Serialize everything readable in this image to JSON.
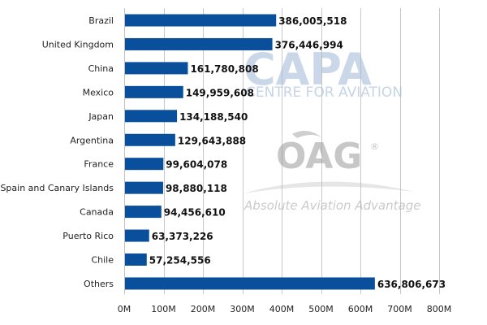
{
  "chart_data": {
    "type": "bar",
    "orientation": "horizontal",
    "categories": [
      "Brazil",
      "United Kingdom",
      "China",
      "Mexico",
      "Japan",
      "Argentina",
      "France",
      "Spain and Canary Islands",
      "Canada",
      "Puerto Rico",
      "Chile",
      "Others"
    ],
    "values": [
      386005518,
      376446994,
      161780808,
      149959608,
      134188540,
      129643888,
      99604078,
      98880118,
      94456610,
      63373226,
      57254556,
      636806673
    ],
    "value_labels": [
      "386,005,518",
      "376,446,994",
      "161,780,808",
      "149,959,608",
      "134,188,540",
      "129,643,888",
      "99,604,078",
      "98,880,118",
      "94,456,610",
      "63,373,226",
      "57,254,556",
      "636,806,673"
    ],
    "xlim": [
      0,
      800000000
    ],
    "x_ticks": [
      0,
      100000000,
      200000000,
      300000000,
      400000000,
      500000000,
      600000000,
      700000000,
      800000000
    ],
    "x_tick_labels": [
      "0M",
      "100M",
      "200M",
      "300M",
      "400M",
      "500M",
      "600M",
      "700M",
      "800M"
    ],
    "grid": true,
    "bar_color": "#0a4f9c",
    "title": "",
    "xlabel": "",
    "ylabel": ""
  },
  "watermarks": {
    "capa_logo_text": "CAPA",
    "capa_subtitle": "CENTRE FOR AVIATION",
    "oag_logo_text": "OAG",
    "oag_registered": "®",
    "oag_tagline": "Absolute Aviation Advantage"
  }
}
